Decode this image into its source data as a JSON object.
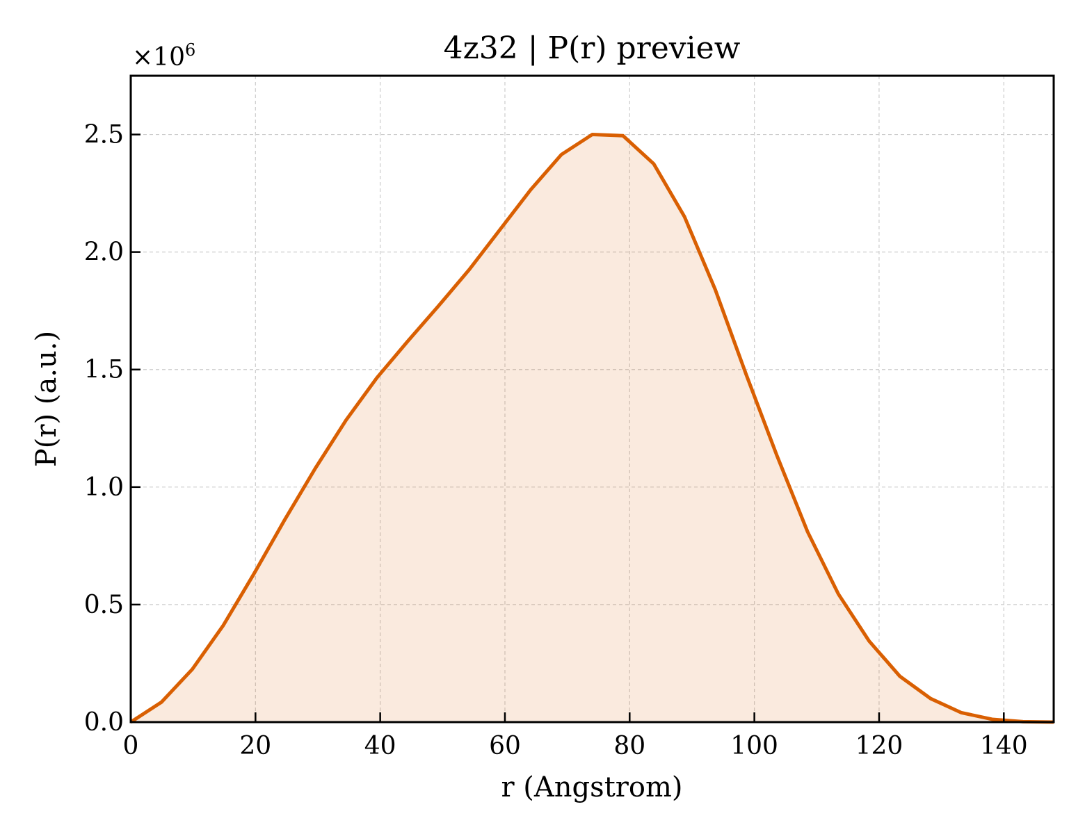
{
  "chart_data": {
    "type": "area",
    "title": "4z32 | P(r) preview",
    "xlabel": "r (Angstrom)",
    "ylabel": "P(r) (a.u.)",
    "y_multiplier": {
      "base": "×10",
      "exponent": "6"
    },
    "xlim": [
      0,
      148
    ],
    "ylim": [
      0,
      2.75
    ],
    "x_ticks": [
      0,
      20,
      40,
      60,
      80,
      100,
      120,
      140
    ],
    "x_tick_labels": [
      "0",
      "20",
      "40",
      "60",
      "80",
      "100",
      "120",
      "140"
    ],
    "y_ticks": [
      0,
      0.5,
      1.0,
      1.5,
      2.0,
      2.5
    ],
    "y_tick_labels": [
      "0.0",
      "0.5",
      "1.0",
      "1.5",
      "2.0",
      "2.5"
    ],
    "grid": true,
    "series": [
      {
        "x": [
          0,
          4.93,
          9.87,
          14.8,
          19.73,
          24.67,
          29.6,
          34.53,
          39.47,
          44.4,
          49.33,
          54.27,
          59.2,
          64.13,
          69.07,
          74,
          78.93,
          83.87,
          88.8,
          93.73,
          98.67,
          103.6,
          108.53,
          113.47,
          118.4,
          123.33,
          128.27,
          133.2,
          138.13,
          143.07,
          148
        ],
        "values": [
          0.0,
          0.085,
          0.225,
          0.41,
          0.63,
          0.86,
          1.08,
          1.285,
          1.465,
          1.62,
          1.77,
          1.925,
          2.095,
          2.265,
          2.415,
          2.5,
          2.495,
          2.375,
          2.15,
          1.84,
          1.48,
          1.135,
          0.81,
          0.545,
          0.345,
          0.195,
          0.1,
          0.04,
          0.012,
          0.002,
          0.0
        ]
      }
    ],
    "colors": {
      "line": "#d95f02",
      "fill": "#d95f02",
      "fill_opacity": 0.13,
      "grid": "#cccccc",
      "axes": "#000000"
    }
  }
}
